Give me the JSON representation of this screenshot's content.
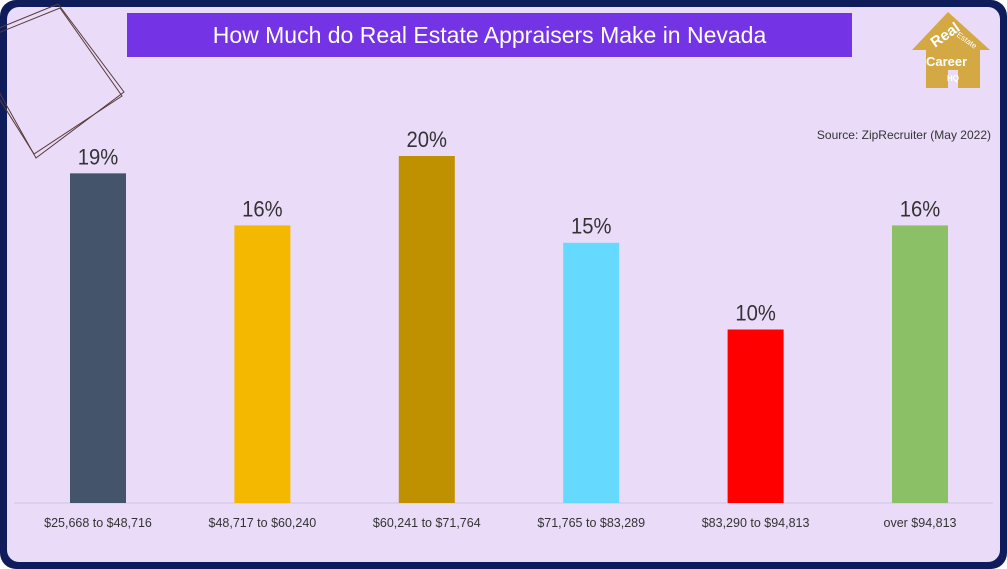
{
  "chart_data": {
    "type": "bar",
    "title": "How Much do Real Estate Appraisers Make in Nevada",
    "source": "Source: ZipRecruiter (May 2022)",
    "categories": [
      "$25,668 to $48,716",
      "$48,717 to $60,240",
      "$60,241 to $71,764",
      "$71,765 to $83,289",
      "$83,290 to $94,813",
      "over $94,813"
    ],
    "values": [
      19,
      16,
      20,
      15,
      10,
      16
    ],
    "data_labels": [
      "19%",
      "16%",
      "20%",
      "15%",
      "10%",
      "16%"
    ],
    "colors": [
      "#44546a",
      "#f5b800",
      "#bf9000",
      "#66d9ff",
      "#ff0000",
      "#8cc066"
    ],
    "ylim": [
      0,
      20
    ],
    "grid": false,
    "xlabel": "",
    "ylabel": ""
  },
  "logo": {
    "text": "Real Estate Career HQ",
    "color": "#d4a843"
  }
}
